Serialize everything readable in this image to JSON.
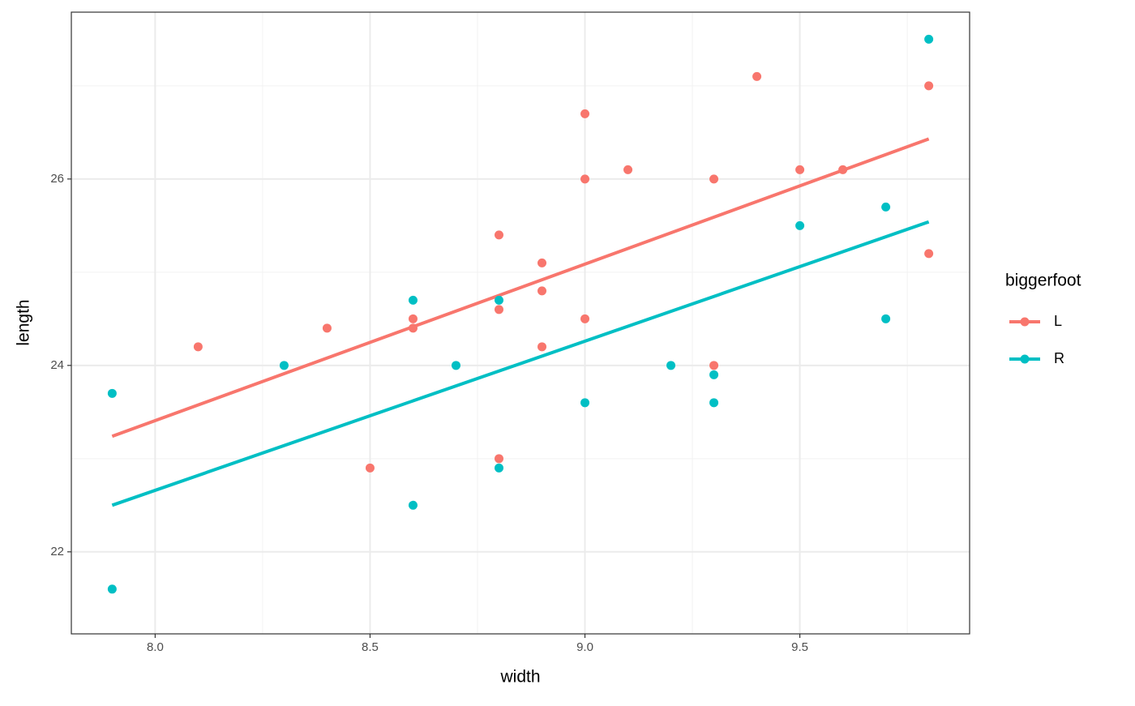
{
  "chart_data": {
    "type": "scatter",
    "x_label": "width",
    "y_label": "length",
    "xlim": [
      7.805,
      9.895
    ],
    "ylim": [
      21.12,
      27.79
    ],
    "xticks": [
      {
        "value": 8,
        "label": "8.0"
      },
      8.5,
      {
        "value": 9,
        "label": "9.0"
      },
      9.5
    ],
    "yticks": [
      22,
      24,
      26
    ],
    "xminor": [
      8.25,
      8.75,
      9.25,
      9.75
    ],
    "yminor": [
      23,
      25,
      27
    ],
    "grid": true,
    "legend_title": "biggerfoot",
    "legend_position": "right",
    "series": [
      {
        "name": "L",
        "color": "#f8766d",
        "x": [
          8.1,
          8.4,
          8.5,
          8.6,
          8.6,
          8.8,
          8.8,
          8.8,
          8.9,
          8.9,
          8.9,
          9.0,
          9.0,
          9.0,
          9.1,
          9.3,
          9.3,
          9.4,
          9.5,
          9.6,
          9.8,
          9.8
        ],
        "values": [
          24.2,
          24.4,
          22.9,
          24.5,
          24.4,
          25.4,
          24.6,
          23.0,
          25.1,
          24.8,
          24.2,
          26.7,
          26.0,
          24.5,
          26.1,
          26.0,
          24.0,
          27.1,
          26.1,
          26.1,
          27.0,
          25.2
        ],
        "fit": {
          "x": [
            7.9,
            9.8
          ],
          "values": [
            23.24,
            26.43
          ]
        }
      },
      {
        "name": "R",
        "color": "#00bfc4",
        "x": [
          7.9,
          7.9,
          8.3,
          8.6,
          8.6,
          8.7,
          8.8,
          8.8,
          9.0,
          9.2,
          9.3,
          9.3,
          9.5,
          9.7,
          9.7,
          9.8
        ],
        "values": [
          23.7,
          21.6,
          24.0,
          24.7,
          22.5,
          24.0,
          24.7,
          22.9,
          23.6,
          24.0,
          23.9,
          23.6,
          25.5,
          25.7,
          24.5,
          27.5
        ],
        "fit": {
          "x": [
            7.9,
            9.8
          ],
          "values": [
            22.5,
            25.54
          ]
        }
      }
    ]
  }
}
